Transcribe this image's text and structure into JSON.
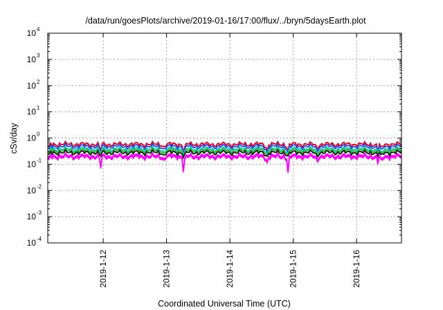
{
  "chart_data": {
    "type": "area",
    "title": "/data/run/goesPlots/archive/2019-01-16/17:00/flux/../bryn/5daysEarth.plot",
    "xlabel": "Coordinated Universal Time (UTC)",
    "ylabel": "cSv/day",
    "yscale": "log",
    "ylim": [
      0.0001,
      10000
    ],
    "xlim": [
      "2019-01-11 03:00",
      "2019-01-16 17:00"
    ],
    "grid": true,
    "y_ticks": [
      {
        "base": "10",
        "exp": "-4"
      },
      {
        "base": "10",
        "exp": "-3"
      },
      {
        "base": "10",
        "exp": "-2"
      },
      {
        "base": "10",
        "exp": "-1"
      },
      {
        "base": "10",
        "exp": "0"
      },
      {
        "base": "10",
        "exp": "1"
      },
      {
        "base": "10",
        "exp": "2"
      },
      {
        "base": "10",
        "exp": "3"
      },
      {
        "base": "10",
        "exp": "4"
      }
    ],
    "x_ticks": [
      "2019-1-12",
      "2019-1-13",
      "2019-1-14",
      "2019-1-15",
      "2019-1-16"
    ],
    "x_tick_dates": [
      "2019-01-12",
      "2019-01-13",
      "2019-01-14",
      "2019-01-15",
      "2019-01-16"
    ],
    "series": [
      {
        "color": "#e8001c",
        "level": 0.58
      },
      {
        "color": "#2255ee",
        "level": 0.48
      },
      {
        "color": "#20c8c0",
        "level": 0.38
      },
      {
        "color": "#33bb33",
        "level": 0.33
      },
      {
        "color": "#222222",
        "level": 0.28
      },
      {
        "color": "#ff00ff",
        "level": 0.21
      }
    ],
    "dips": [
      {
        "date": "2019-01-11 03:15",
        "min": 0.11
      },
      {
        "date": "2019-01-11 23:00",
        "min": 0.05
      },
      {
        "date": "2019-01-12 23:00",
        "min": 0.14
      },
      {
        "date": "2019-01-13 06:30",
        "min": 0.022
      },
      {
        "date": "2019-01-14 14:00",
        "min": 0.09
      },
      {
        "date": "2019-01-14 22:00",
        "min": 0.045
      },
      {
        "date": "2019-01-15 09:00",
        "min": 0.12
      },
      {
        "date": "2019-01-16 08:00",
        "min": 0.1
      },
      {
        "date": "2019-01-16 09:30",
        "min": 0.1
      }
    ]
  }
}
